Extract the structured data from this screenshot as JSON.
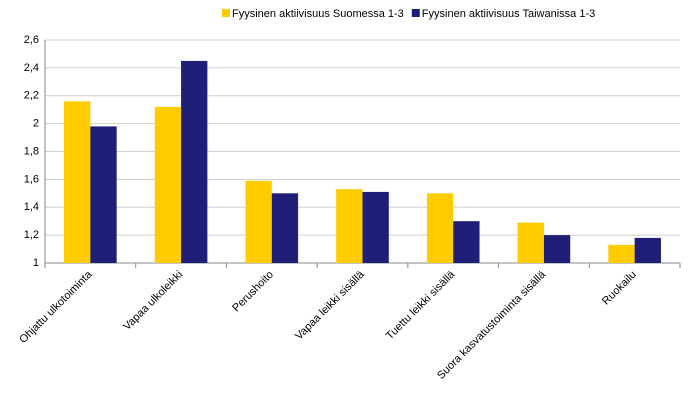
{
  "chart_data": {
    "type": "bar",
    "categories": [
      "Ohjattu ulkotoiminta",
      "Vapaa ulkoleikki",
      "Perushoito",
      "Vapaa leikki sisällä",
      "Tuettu leikki sisällä",
      "Suora kasvatustoiminta sisällä",
      "Ruokailu"
    ],
    "series": [
      {
        "name": "Fyysinen aktiivisuus Suomessa 1-3",
        "color": "#ffcc00",
        "values": [
          2.16,
          2.12,
          1.59,
          1.53,
          1.5,
          1.29,
          1.13
        ]
      },
      {
        "name": "Fyysinen aktiivisuus Taiwanissa 1-3",
        "color": "#1f1f78",
        "values": [
          1.98,
          2.45,
          1.5,
          1.51,
          1.3,
          1.2,
          1.18
        ]
      }
    ],
    "ylim": [
      1,
      2.6
    ],
    "yticks": [
      1,
      {
        "value": 1.2,
        "label": "1,2"
      },
      {
        "value": 1.4,
        "label": "1,4"
      },
      {
        "value": 1.6,
        "label": "1,6"
      },
      {
        "value": 1.8,
        "label": "1,8"
      },
      2,
      {
        "value": 2.2,
        "label": "2,2"
      },
      {
        "value": 2.4,
        "label": "2,4"
      },
      {
        "value": 2.6,
        "label": "2,6"
      }
    ],
    "grid": true,
    "legend": "top"
  }
}
